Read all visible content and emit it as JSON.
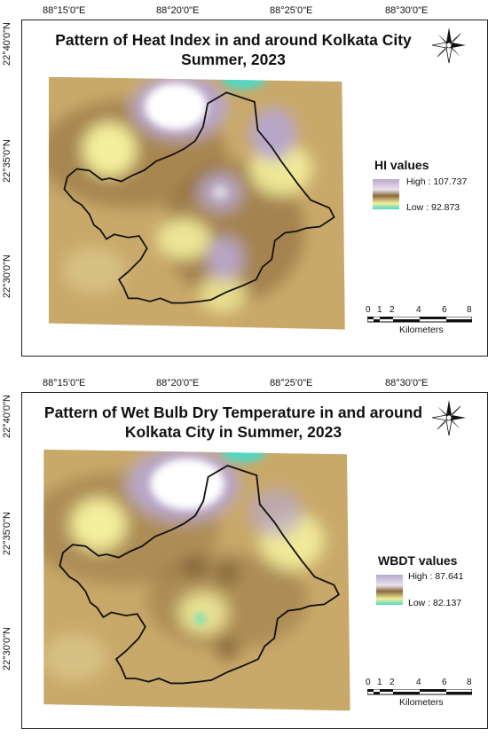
{
  "lon_labels": [
    "88°15'0\"E",
    "88°20'0\"E",
    "88°25'0\"E",
    "88°30'0\"E"
  ],
  "lat_labels": [
    "22°40'0\"N",
    "22°35'0\"N",
    "22°30'0\"N"
  ],
  "panels": [
    {
      "title_line1": "Pattern of Heat Index in and around Kolkata City",
      "title_line2": "Summer, 2023",
      "legend_title": "HI values",
      "legend_high": "High : 107.737",
      "legend_low": "Low : 92.873",
      "scale_ticks": [
        "0",
        "1",
        "2",
        "4",
        "6",
        "8"
      ],
      "scale_unit": "Kilometers"
    },
    {
      "title_line1": "Pattern of Wet Bulb Dry Temperature in and around",
      "title_line2": "Kolkata City in Summer, 2023",
      "legend_title": "WBDT values",
      "legend_high": "High : 87.641",
      "legend_low": "Low : 82.137",
      "scale_ticks": [
        "0",
        "1",
        "2",
        "4",
        "6",
        "8"
      ],
      "scale_unit": "Kilometers"
    }
  ],
  "colors": {
    "base": "#c9a96a",
    "dark_brown": "#8c6a3c",
    "yellow": "#f3ef9c",
    "lavender": "#b8a6c9",
    "white": "#ffffff",
    "cyan": "#5fd7c8",
    "boundary": "#111111"
  }
}
